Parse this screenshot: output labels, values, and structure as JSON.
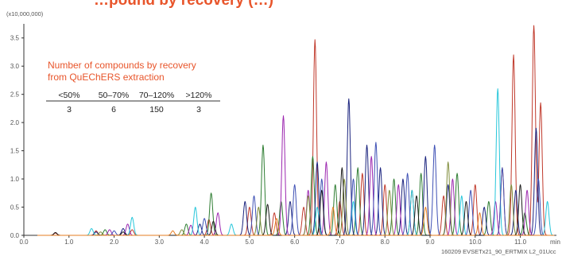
{
  "chart_data": {
    "type": "line",
    "title": "…pound by recovery (…)",
    "y_scale_label": "(x10,000,000)",
    "x_unit": "min",
    "xlim": [
      0.0,
      11.8
    ],
    "ylim": [
      0.0,
      3.75
    ],
    "x_ticks": [
      "0.0",
      "1.0",
      "2.0",
      "3.0",
      "4.0",
      "5.0",
      "6.0",
      "7.0",
      "8.0",
      "9.0",
      "10.0",
      "11.0"
    ],
    "y_ticks": [
      "0.0",
      "0.5",
      "1.0",
      "1.5",
      "2.0",
      "2.5",
      "3.0",
      "3.5"
    ],
    "series": [
      {
        "color": "#c0392b",
        "peaks": [
          [
            0.7,
            0.04
          ],
          [
            1.6,
            0.08
          ],
          [
            2.4,
            0.1
          ],
          [
            4.1,
            0.28
          ],
          [
            5.0,
            0.5
          ],
          [
            5.55,
            0.4
          ],
          [
            6.2,
            0.5
          ],
          [
            6.45,
            3.47
          ],
          [
            7.0,
            0.6
          ],
          [
            7.5,
            1.1
          ],
          [
            8.0,
            0.9
          ],
          [
            8.6,
            0.8
          ],
          [
            9.3,
            0.7
          ],
          [
            10.0,
            0.9
          ],
          [
            10.6,
            1.2
          ],
          [
            10.85,
            3.2
          ],
          [
            11.3,
            3.72
          ],
          [
            11.45,
            2.35
          ]
        ]
      },
      {
        "color": "#2e7d32",
        "peaks": [
          [
            1.8,
            0.1
          ],
          [
            3.6,
            0.2
          ],
          [
            4.15,
            0.75
          ],
          [
            5.3,
            1.6
          ],
          [
            5.7,
            0.6
          ],
          [
            6.4,
            1.4
          ],
          [
            6.9,
            0.9
          ],
          [
            7.4,
            1.2
          ],
          [
            8.2,
            1.0
          ],
          [
            8.8,
            1.1
          ],
          [
            9.6,
            1.1
          ],
          [
            10.3,
            0.6
          ],
          [
            11.1,
            0.4
          ]
        ]
      },
      {
        "color": "#1a237e",
        "peaks": [
          [
            1.6,
            0.06
          ],
          [
            2.2,
            0.12
          ],
          [
            3.9,
            0.2
          ],
          [
            4.9,
            0.6
          ],
          [
            5.9,
            0.6
          ],
          [
            6.5,
            1.3
          ],
          [
            7.2,
            2.42
          ],
          [
            7.6,
            1.6
          ],
          [
            7.9,
            1.2
          ],
          [
            8.4,
            1.0
          ],
          [
            8.9,
            1.4
          ],
          [
            9.4,
            0.9
          ],
          [
            10.2,
            0.5
          ],
          [
            10.9,
            0.8
          ],
          [
            11.35,
            1.9
          ]
        ]
      },
      {
        "color": "#9c27b0",
        "peaks": [
          [
            1.9,
            0.1
          ],
          [
            2.3,
            0.2
          ],
          [
            3.7,
            0.18
          ],
          [
            4.3,
            0.4
          ],
          [
            5.75,
            2.12
          ],
          [
            6.3,
            0.8
          ],
          [
            6.7,
            1.3
          ],
          [
            7.7,
            1.4
          ],
          [
            8.3,
            0.9
          ],
          [
            9.5,
            1.0
          ],
          [
            10.45,
            0.6
          ],
          [
            11.15,
            0.8
          ]
        ]
      },
      {
        "color": "#26c6da",
        "peaks": [
          [
            1.5,
            0.12
          ],
          [
            2.4,
            0.32
          ],
          [
            3.8,
            0.5
          ],
          [
            4.6,
            0.2
          ],
          [
            6.5,
            0.5
          ],
          [
            7.3,
            0.6
          ],
          [
            8.6,
            0.8
          ],
          [
            9.7,
            0.7
          ],
          [
            10.5,
            2.6
          ],
          [
            11.6,
            0.6
          ]
        ]
      },
      {
        "color": "#3f51b5",
        "peaks": [
          [
            2.0,
            0.08
          ],
          [
            4.0,
            0.3
          ],
          [
            5.1,
            0.7
          ],
          [
            6.0,
            0.9
          ],
          [
            6.6,
            1.0
          ],
          [
            7.3,
            1.0
          ],
          [
            7.8,
            1.65
          ],
          [
            8.5,
            1.1
          ],
          [
            9.1,
            1.6
          ],
          [
            9.9,
            0.8
          ],
          [
            10.6,
            1.2
          ],
          [
            11.4,
            1.0
          ]
        ]
      },
      {
        "color": "#7f8c3a",
        "peaks": [
          [
            1.7,
            0.06
          ],
          [
            3.5,
            0.1
          ],
          [
            5.2,
            0.5
          ],
          [
            6.3,
            0.7
          ],
          [
            7.1,
            1.0
          ],
          [
            8.1,
            0.8
          ],
          [
            9.4,
            1.3
          ],
          [
            10.8,
            0.9
          ]
        ]
      },
      {
        "color": "#1b1b1b",
        "peaks": [
          [
            0.7,
            0.05
          ],
          [
            2.2,
            0.06
          ],
          [
            4.2,
            0.25
          ],
          [
            5.4,
            0.55
          ],
          [
            6.6,
            0.8
          ],
          [
            7.05,
            1.2
          ],
          [
            8.7,
            0.7
          ],
          [
            9.8,
            0.6
          ],
          [
            11.0,
            0.9
          ]
        ]
      },
      {
        "color": "#e67e22",
        "peaks": [
          [
            3.3,
            0.08
          ],
          [
            5.6,
            0.3
          ],
          [
            6.85,
            0.5
          ],
          [
            8.9,
            0.5
          ],
          [
            10.1,
            0.4
          ]
        ]
      }
    ],
    "inset": {
      "title_line1": "Number of compounds by recovery",
      "title_line2": "from QuEChERS extraction",
      "headers": [
        "<50%",
        "50–70%",
        "70–120%",
        ">120%"
      ],
      "values": [
        "3",
        "6",
        "150",
        "3"
      ]
    },
    "footer": "160209 EVSETx21_90_ERTMIX L2_01Ucc"
  },
  "colors": {
    "accent": "#e8552b",
    "title": "#e8552b",
    "axis": "#333333"
  }
}
